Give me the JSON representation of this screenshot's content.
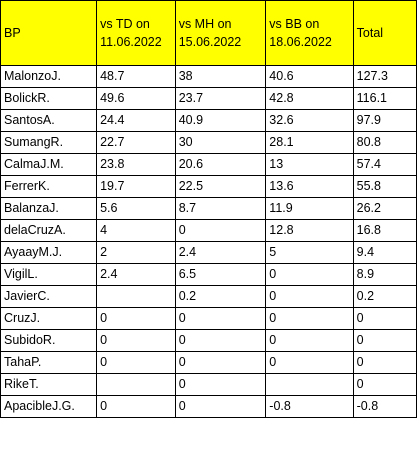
{
  "table": {
    "header_color": "#ffff00",
    "columns": [
      {
        "line1": "BP",
        "line2": ""
      },
      {
        "line1": "vs TD on",
        "line2": "11.06.2022"
      },
      {
        "line1": "vs MH on",
        "line2": "15.06.2022"
      },
      {
        "line1": "vs BB on",
        "line2": "18.06.2022"
      },
      {
        "line1": "Total",
        "line2": ""
      }
    ],
    "rows": [
      [
        "MalonzoJ.",
        "48.7",
        "38",
        "40.6",
        "127.3"
      ],
      [
        "BolickR.",
        "49.6",
        "23.7",
        "42.8",
        "116.1"
      ],
      [
        "SantosA.",
        "24.4",
        "40.9",
        "32.6",
        "97.9"
      ],
      [
        "SumangR.",
        "22.7",
        "30",
        "28.1",
        "80.8"
      ],
      [
        "CalmaJ.M.",
        "23.8",
        "20.6",
        "13",
        "57.4"
      ],
      [
        "FerrerK.",
        "19.7",
        "22.5",
        "13.6",
        "55.8"
      ],
      [
        "BalanzaJ.",
        "5.6",
        "8.7",
        "11.9",
        "26.2"
      ],
      [
        "delaCruzA.",
        "4",
        "0",
        "12.8",
        "16.8"
      ],
      [
        "AyaayM.J.",
        "2",
        "2.4",
        "5",
        "9.4"
      ],
      [
        "VigilL.",
        "2.4",
        "6.5",
        "0",
        "8.9"
      ],
      [
        "JavierC.",
        "",
        "0.2",
        "0",
        "0.2"
      ],
      [
        "CruzJ.",
        "0",
        "0",
        "0",
        "0"
      ],
      [
        "SubidoR.",
        "0",
        "0",
        "0",
        "0"
      ],
      [
        "TahaP.",
        "0",
        "0",
        "0",
        "0"
      ],
      [
        "RikeT.",
        "",
        "0",
        "",
        "0"
      ],
      [
        "ApacibleJ.G.",
        "0",
        "0",
        "-0.8",
        "-0.8"
      ]
    ]
  }
}
